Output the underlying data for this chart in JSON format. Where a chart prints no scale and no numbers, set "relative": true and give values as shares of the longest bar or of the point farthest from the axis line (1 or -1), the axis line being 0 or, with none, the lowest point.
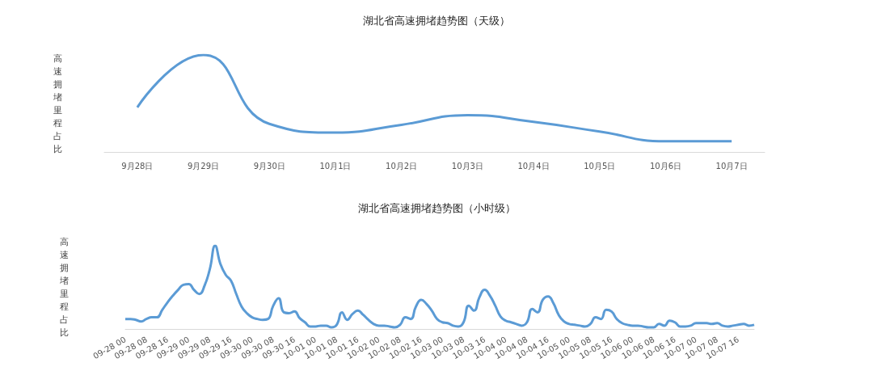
{
  "chart_data": [
    {
      "type": "line",
      "title": "湖北省高速拥堵趋势图（天级）",
      "ylabel": "高速拥堵里程占比",
      "relative": true,
      "marker": "none",
      "grid": false,
      "color": "#5b9bd5",
      "categories": [
        "9月28日",
        "9月29日",
        "9月30日",
        "10月1日",
        "10月2日",
        "10月3日",
        "10月4日",
        "10月5日",
        "10月6日",
        "10月7日"
      ],
      "values": [
        0.46,
        1,
        0.29,
        0.2,
        0.28,
        0.38,
        0.31,
        0.21,
        0.11,
        0.11
      ]
    },
    {
      "type": "line",
      "title": "湖北省高速拥堵趋势图（小时级）",
      "ylabel": "高速拥堵里程占比",
      "relative": true,
      "marker": "none",
      "grid": false,
      "color": "#5b9bd5",
      "categories": [
        "09-28 00",
        null,
        null,
        null,
        "09-28 08",
        null,
        null,
        null,
        "09-28 16",
        null,
        null,
        null,
        "09-29 00",
        null,
        null,
        null,
        "09-29 08",
        null,
        null,
        null,
        "09-29 16",
        null,
        null,
        null,
        "09-30 00",
        null,
        null,
        null,
        "09-30 08",
        null,
        null,
        null,
        "09-30 16",
        null,
        null,
        null,
        "10-01 00",
        null,
        null,
        null,
        "10-01 08",
        null,
        null,
        null,
        "10-01 16",
        null,
        null,
        null,
        "10-02 00",
        null,
        null,
        null,
        "10-02 08",
        null,
        null,
        null,
        "10-02 16",
        null,
        null,
        null,
        "10-03 00",
        null,
        null,
        null,
        "10-03 08",
        null,
        null,
        null,
        "10-03 16",
        null,
        null,
        null,
        "10-04 00",
        null,
        null,
        null,
        "10-04 08",
        null,
        null,
        null,
        "10-04 16",
        null,
        null,
        null,
        "10-05 00",
        null,
        null,
        null,
        "10-05 08",
        null,
        null,
        null,
        "10-05 16",
        null,
        null,
        null,
        "10-06 00",
        null,
        null,
        null,
        "10-06 08",
        null,
        null,
        null,
        "10-06 16",
        null,
        null,
        null,
        "10-07 00",
        null,
        null,
        null,
        "10-07 08",
        null,
        null,
        null,
        "10-07 16",
        null,
        null,
        null
      ],
      "values": [
        0.12,
        0.12,
        0.11,
        0.09,
        0.12,
        0.14,
        0.14,
        0.23,
        0.32,
        0.4,
        0.47,
        0.53,
        0.54,
        0.47,
        0.42,
        0.52,
        0.72,
        1,
        0.78,
        0.65,
        0.58,
        0.42,
        0.27,
        0.19,
        0.14,
        0.12,
        0.11,
        0.12,
        0.28,
        0.37,
        0.2,
        0.19,
        0.21,
        0.13,
        0.08,
        0.03,
        0.03,
        0.04,
        0.04,
        0.02,
        0.05,
        0.2,
        0.11,
        0.18,
        0.22,
        0.17,
        0.11,
        0.06,
        0.04,
        0.04,
        0.03,
        0.02,
        0.05,
        0.14,
        0.12,
        0.27,
        0.35,
        0.3,
        0.22,
        0.12,
        0.08,
        0.07,
        0.04,
        0.03,
        0.08,
        0.28,
        0.22,
        0.38,
        0.47,
        0.4,
        0.28,
        0.15,
        0.1,
        0.08,
        0.06,
        0.04,
        0.08,
        0.24,
        0.2,
        0.35,
        0.39,
        0.31,
        0.17,
        0.09,
        0.06,
        0.05,
        0.04,
        0.03,
        0.06,
        0.14,
        0.12,
        0.23,
        0.21,
        0.12,
        0.07,
        0.05,
        0.04,
        0.04,
        0.03,
        0.02,
        0.02,
        0.06,
        0.04,
        0.1,
        0.08,
        0.03,
        0.03,
        0.04,
        0.07,
        0.07,
        0.07,
        0.06,
        0.07,
        0.04,
        0.03,
        0.04,
        0.05,
        0.06,
        0.04,
        0.05
      ]
    }
  ]
}
